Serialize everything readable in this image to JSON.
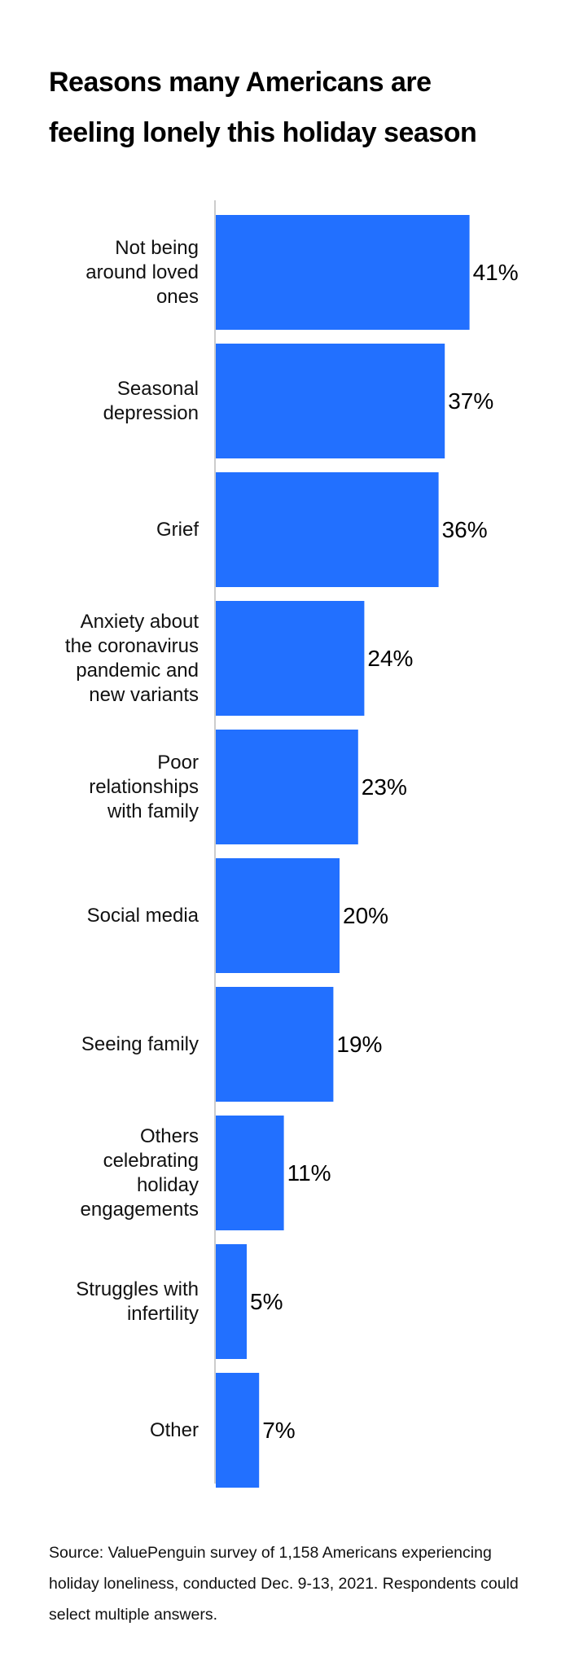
{
  "title_lines": [
    "Reasons many Americans are",
    "feeling lonely this holiday season"
  ],
  "source_text": "Source: ValuePenguin survey of 1,158 Americans experiencing holiday loneliness, conducted Dec. 9-13, 2021. Respondents could select multiple answers.",
  "colors": {
    "bar": "#2270ff",
    "axis": "#bbbbbb"
  },
  "chart_data": {
    "type": "bar",
    "orientation": "horizontal",
    "title": "Reasons many Americans are feeling lonely this holiday season",
    "xlabel": "",
    "ylabel": "",
    "xlim": [
      0,
      50
    ],
    "grid": false,
    "categories": [
      [
        "Not being",
        "around loved",
        "ones"
      ],
      [
        "Seasonal",
        "depression"
      ],
      [
        "Grief"
      ],
      [
        "Anxiety about",
        "the coronavirus",
        "pandemic and",
        "new variants"
      ],
      [
        "Poor",
        "relationships",
        "with family"
      ],
      [
        "Social media"
      ],
      [
        "Seeing family"
      ],
      [
        "Others",
        "celebrating",
        "holiday",
        "engagements"
      ],
      [
        "Struggles with",
        "infertility"
      ],
      [
        "Other"
      ]
    ],
    "values": [
      41,
      37,
      36,
      24,
      23,
      20,
      19,
      11,
      5,
      7
    ],
    "value_labels": [
      "41%",
      "37%",
      "36%",
      "24%",
      "23%",
      "20%",
      "19%",
      "11%",
      "5%",
      "7%"
    ]
  }
}
